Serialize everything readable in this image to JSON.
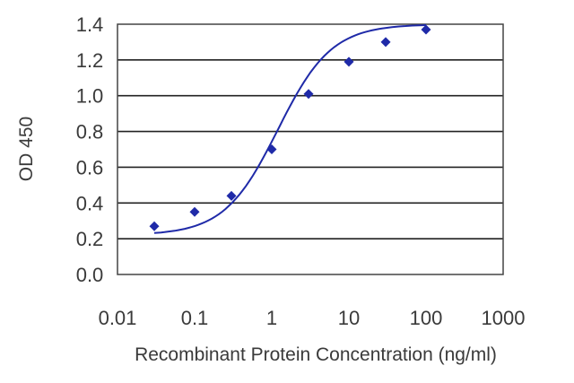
{
  "chart_data": {
    "type": "scatter",
    "title": "",
    "xlabel": "Recombinant Protein Concentration (ng/ml)",
    "ylabel": "OD 450",
    "x_scale": "log",
    "xlim": [
      0.01,
      1000
    ],
    "ylim": [
      0.0,
      1.4
    ],
    "x_ticks": [
      0.01,
      0.1,
      1,
      10,
      100,
      1000
    ],
    "x_tick_labels": [
      "0.01",
      "0.1",
      "1",
      "10",
      "100",
      "1000"
    ],
    "y_ticks": [
      0.0,
      0.2,
      0.4,
      0.6,
      0.8,
      1.0,
      1.2,
      1.4
    ],
    "y_tick_labels": [
      "0.0",
      "0.2",
      "0.4",
      "0.6",
      "0.8",
      "1.0",
      "1.2",
      "1.4"
    ],
    "grid": "horizontal",
    "series": [
      {
        "x": [
          0.03,
          0.1,
          0.3,
          1,
          3,
          10,
          30,
          100
        ],
        "y": [
          0.27,
          0.35,
          0.44,
          0.7,
          1.01,
          1.19,
          1.3,
          1.37
        ],
        "marker": "diamond",
        "fit": "sigmoid",
        "color": "#1f2aa8"
      }
    ],
    "colors": {
      "plot_background": "#ffffff",
      "grid": "#222222",
      "axis_text": "#3a3a3a"
    }
  }
}
